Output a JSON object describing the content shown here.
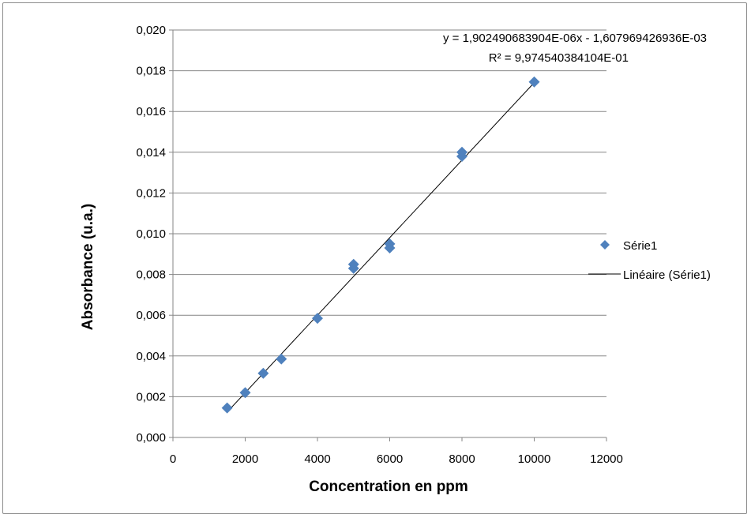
{
  "chart_data": {
    "type": "scatter",
    "xlabel": "Concentration en ppm",
    "ylabel": "Absorbance (u.a.)",
    "xlim": [
      0,
      12000
    ],
    "ylim": [
      0,
      0.02
    ],
    "x_ticks": [
      "0",
      "2000",
      "4000",
      "6000",
      "8000",
      "10000",
      "12000"
    ],
    "y_ticks": [
      "0,000",
      "0,002",
      "0,004",
      "0,006",
      "0,008",
      "0,010",
      "0,012",
      "0,014",
      "0,016",
      "0,018",
      "0,020"
    ],
    "grid": "horizontal",
    "legend_position": "right",
    "series": [
      {
        "name": "Série1",
        "marker": "diamond",
        "color": "#4F81BD",
        "points": [
          {
            "x": 1500,
            "y": 0.00145
          },
          {
            "x": 2000,
            "y": 0.0022
          },
          {
            "x": 2500,
            "y": 0.00315
          },
          {
            "x": 3000,
            "y": 0.00385
          },
          {
            "x": 4000,
            "y": 0.00585
          },
          {
            "x": 5000,
            "y": 0.0083
          },
          {
            "x": 5000,
            "y": 0.0085
          },
          {
            "x": 6000,
            "y": 0.0093
          },
          {
            "x": 6000,
            "y": 0.0095
          },
          {
            "x": 8000,
            "y": 0.0138
          },
          {
            "x": 8000,
            "y": 0.014
          },
          {
            "x": 10000,
            "y": 0.01745
          }
        ]
      }
    ],
    "trendline": {
      "name": "Linéaire (Série1)",
      "color": "#000000",
      "slope": 1.902490683904e-06,
      "intercept": -0.001607969426936,
      "x_range": [
        1500,
        10000
      ],
      "equation": "y = 1,902490683904E-06x - 1,607969426936E-03",
      "r_squared": "R² = 9,974540384104E-01"
    }
  }
}
